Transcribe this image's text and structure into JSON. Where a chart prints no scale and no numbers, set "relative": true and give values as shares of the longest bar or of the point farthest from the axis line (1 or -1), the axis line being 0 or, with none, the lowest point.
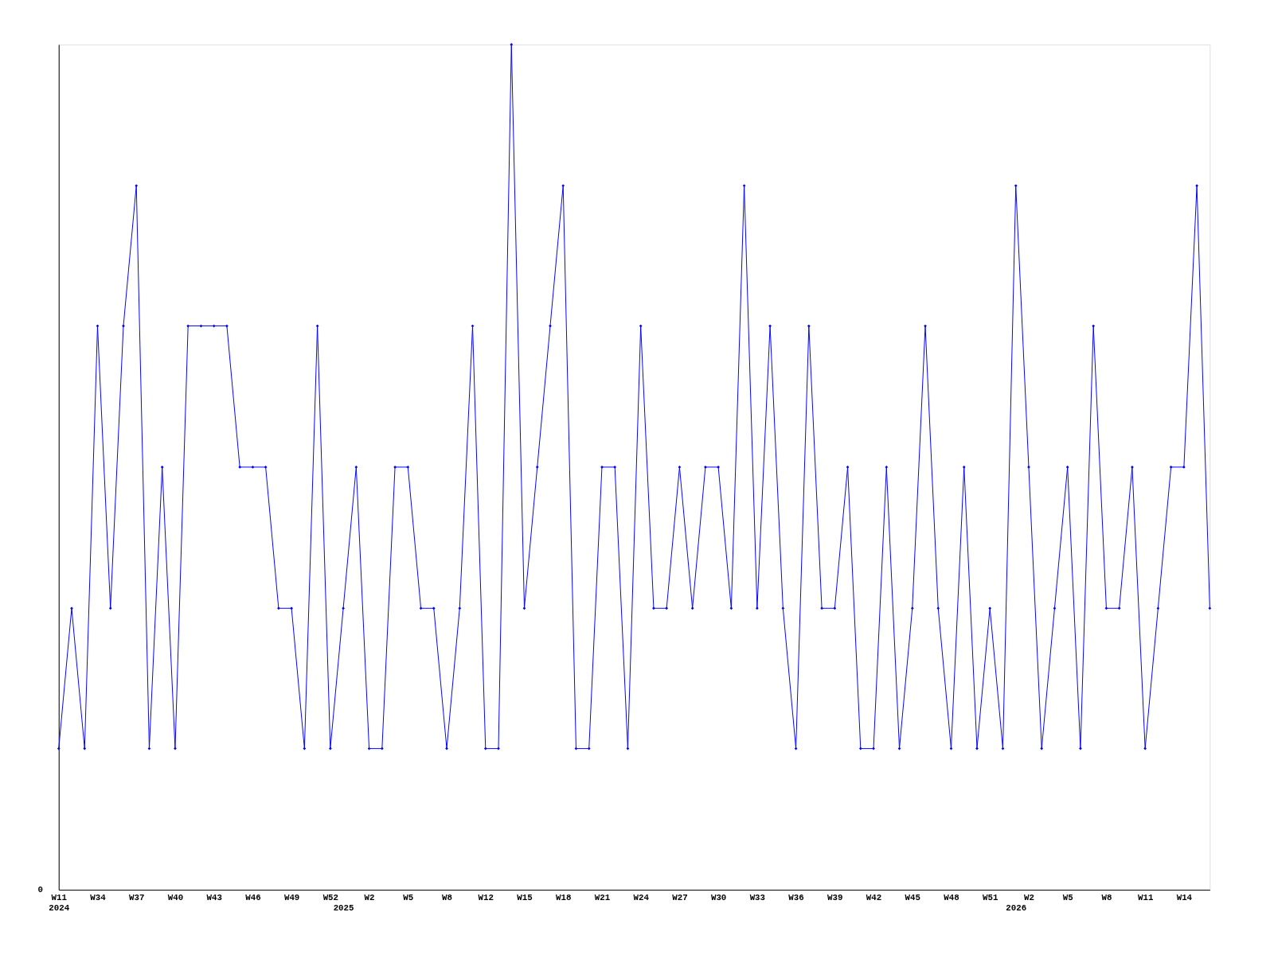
{
  "chart_data": {
    "type": "line",
    "relative": true,
    "marker": "diamond",
    "line_style": "solid",
    "grid": false,
    "annotations": [
      "0"
    ],
    "categories": [
      "W11\n2024",
      null,
      null,
      "W34",
      null,
      null,
      "W37",
      null,
      null,
      "W40",
      null,
      null,
      "W43",
      null,
      null,
      "W46",
      null,
      null,
      "W49",
      null,
      null,
      "W52",
      "\n2025",
      null,
      "W2",
      null,
      null,
      "W5",
      null,
      null,
      "W8",
      null,
      null,
      "W12",
      null,
      null,
      "W15",
      null,
      null,
      "W18",
      null,
      null,
      "W21",
      null,
      null,
      "W24",
      null,
      null,
      "W27",
      null,
      null,
      "W30",
      null,
      null,
      "W33",
      null,
      null,
      "W36",
      null,
      null,
      "W39",
      null,
      null,
      "W42",
      null,
      null,
      "W45",
      null,
      null,
      "W48",
      null,
      null,
      "W51",
      null,
      "\n2026",
      "W2",
      null,
      null,
      "W5",
      null,
      null,
      "W8",
      null,
      null,
      "W11",
      null,
      null,
      "W14",
      null,
      null
    ],
    "series": [
      {
        "color": "#0000ff",
        "values": [
          0.167,
          0.333,
          0.167,
          0.667,
          0.333,
          0.667,
          0.833,
          0.167,
          0.5,
          0.167,
          0.667,
          0.667,
          0.667,
          0.667,
          0.5,
          0.5,
          0.5,
          0.333,
          0.333,
          0.167,
          0.667,
          0.167,
          0.333,
          0.5,
          0.167,
          0.167,
          0.5,
          0.5,
          0.333,
          0.333,
          0.167,
          0.333,
          0.667,
          0.167,
          0.167,
          1,
          0.333,
          0.5,
          0.667,
          0.833,
          0.167,
          0.167,
          0.5,
          0.5,
          0.167,
          0.667,
          0.333,
          0.333,
          0.5,
          0.333,
          0.5,
          0.5,
          0.333,
          0.833,
          0.333,
          0.667,
          0.333,
          0.167,
          0.667,
          0.333,
          0.333,
          0.5,
          0.167,
          0.167,
          0.5,
          0.167,
          0.333,
          0.667,
          0.333,
          0.167,
          0.5,
          0.167,
          0.333,
          0.167,
          0.833,
          0.5,
          0.167,
          0.333,
          0.5,
          0.167,
          0.667,
          0.333,
          0.333,
          0.5,
          0.167,
          0.333,
          0.5,
          0.5,
          0.833,
          0.333
        ]
      }
    ]
  }
}
